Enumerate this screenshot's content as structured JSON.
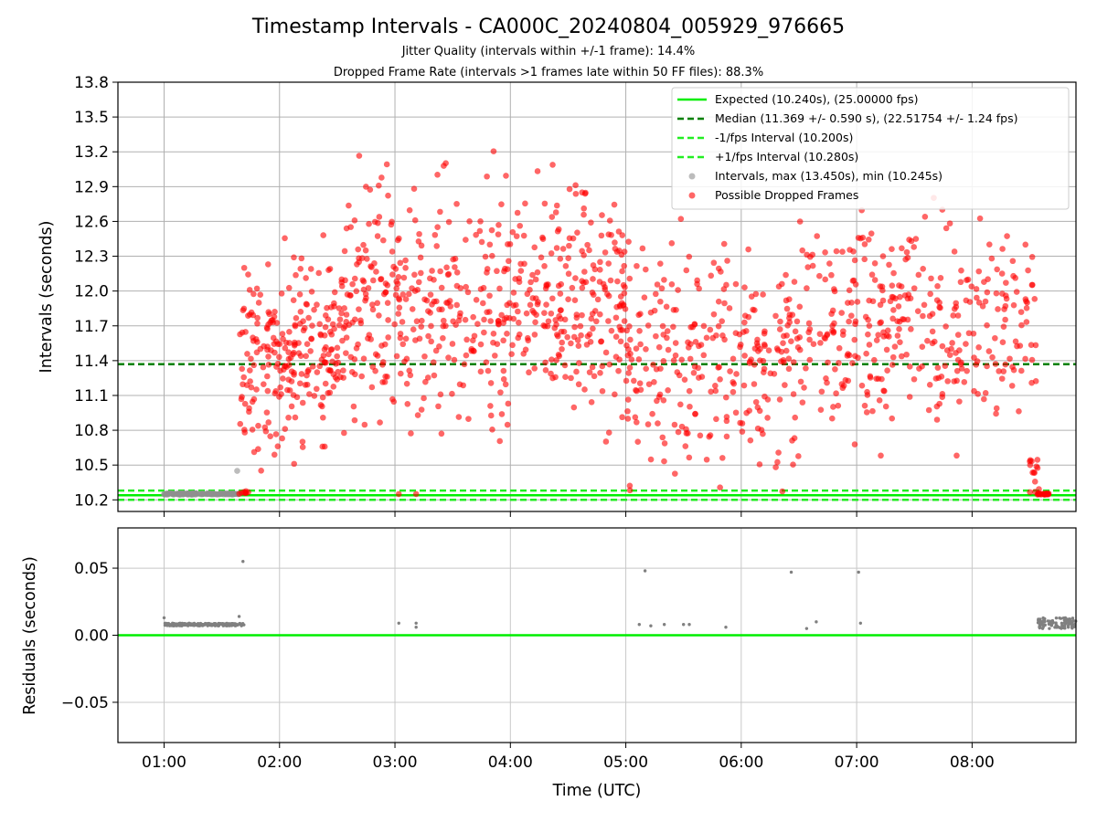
{
  "chart_data": {
    "type": "scatter",
    "title": "Timestamp Intervals - CA000C_20240804_005929_976665",
    "subtitles": [
      "Jitter Quality (intervals within +/-1 frame): 14.4%",
      "Dropped Frame Rate (intervals >1 frames late within 50 FF files): 88.3%"
    ],
    "xlabel": "Time (UTC)",
    "x_ticks": [
      "01:00",
      "02:00",
      "03:00",
      "04:00",
      "05:00",
      "06:00",
      "07:00",
      "08:00"
    ],
    "x_range": [
      "00:36",
      "08:54"
    ],
    "grid": true,
    "panels": [
      {
        "name": "intervals",
        "ylabel": "Intervals (seconds)",
        "ylim": [
          10.1,
          13.8
        ],
        "y_ticks": [
          "10.2",
          "10.5",
          "10.8",
          "11.1",
          "11.4",
          "11.7",
          "12.0",
          "12.3",
          "12.6",
          "12.9",
          "13.2",
          "13.5",
          "13.8"
        ],
        "legend_position": "upper right",
        "series": [
          {
            "name": "Expected (10.240s), (25.00000 fps)",
            "kind": "hline",
            "y": 10.24,
            "color": "#00ee00",
            "style": "solid"
          },
          {
            "name": "Median (11.369 +/- 0.590 s), (22.51754 +/- 1.24 fps)",
            "kind": "hline",
            "y": 11.369,
            "color": "#008000",
            "style": "dashed"
          },
          {
            "name": "-1/fps Interval (10.200s)",
            "kind": "hline",
            "y": 10.2,
            "color": "#22ee22",
            "style": "dashed"
          },
          {
            "name": "+1/fps Interval (10.280s)",
            "kind": "hline",
            "y": 10.28,
            "color": "#22ee22",
            "style": "dashed"
          },
          {
            "name": "Intervals, max (13.450s), min (10.245s)",
            "kind": "scatter",
            "color": "#909090",
            "points": [
              {
                "t": "01:00",
                "y": 10.25
              },
              {
                "t": "01:05",
                "y": 10.25
              },
              {
                "t": "01:10",
                "y": 10.25
              },
              {
                "t": "01:15",
                "y": 10.25
              },
              {
                "t": "01:20",
                "y": 10.25
              },
              {
                "t": "01:25",
                "y": 10.25
              },
              {
                "t": "01:30",
                "y": 10.25
              },
              {
                "t": "01:35",
                "y": 10.25
              },
              {
                "t": "01:38",
                "y": 10.45
              },
              {
                "t": "01:39",
                "y": 10.25
              }
            ]
          },
          {
            "name": "Possible Dropped Frames",
            "kind": "scatter",
            "color": "#ff0000",
            "n_points": 1450,
            "envelope": [
              {
                "from": "01:39",
                "to": "01:44",
                "y_min": 10.25,
                "y_max": 10.28,
                "n": 8
              },
              {
                "from": "01:39",
                "to": "02:30",
                "y_min": 10.4,
                "y_max": 12.5,
                "n": 230
              },
              {
                "from": "02:30",
                "to": "04:00",
                "y_min": 10.5,
                "y_max": 13.25,
                "n": 330
              },
              {
                "from": "04:00",
                "to": "05:00",
                "y_min": 10.65,
                "y_max": 13.2,
                "n": 230
              },
              {
                "from": "05:00",
                "to": "06:30",
                "y_min": 10.25,
                "y_max": 12.65,
                "n": 270
              },
              {
                "from": "06:30",
                "to": "08:34",
                "y_min": 10.5,
                "y_max": 12.9,
                "n": 340
              },
              {
                "from": "08:30",
                "to": "08:35",
                "y_min": 10.25,
                "y_max": 10.6,
                "n": 14
              },
              {
                "from": "08:34",
                "to": "08:40",
                "y_min": 10.245,
                "y_max": 10.255,
                "n": 28
              }
            ]
          }
        ]
      },
      {
        "name": "residuals",
        "ylabel": "Residuals (seconds)",
        "ylim": [
          -0.08,
          0.08
        ],
        "y_ticks": [
          "−0.05",
          "0.00",
          "0.05"
        ],
        "series": [
          {
            "name": "zero",
            "kind": "hline",
            "y": 0.0,
            "color": "#00ee00",
            "style": "solid"
          },
          {
            "name": "residuals",
            "kind": "scatter",
            "color": "#808080",
            "points": [
              {
                "t": "01:00",
                "y": 0.013
              },
              {
                "t": "01:39",
                "y": 0.014
              },
              {
                "t": "01:41",
                "y": 0.055
              },
              {
                "t": "03:02",
                "y": 0.009
              },
              {
                "t": "03:11",
                "y": 0.009
              },
              {
                "t": "03:11",
                "y": 0.006
              },
              {
                "t": "05:07",
                "y": 0.008
              },
              {
                "t": "05:10",
                "y": 0.048
              },
              {
                "t": "05:13",
                "y": 0.007
              },
              {
                "t": "05:20",
                "y": 0.008
              },
              {
                "t": "05:30",
                "y": 0.008
              },
              {
                "t": "05:33",
                "y": 0.008
              },
              {
                "t": "05:52",
                "y": 0.006
              },
              {
                "t": "06:26",
                "y": 0.047
              },
              {
                "t": "06:34",
                "y": 0.005
              },
              {
                "t": "06:39",
                "y": 0.01
              },
              {
                "t": "07:01",
                "y": 0.047
              },
              {
                "t": "07:02",
                "y": 0.009
              }
            ],
            "clusters": [
              {
                "from": "01:00",
                "to": "01:42",
                "y_min": 0.007,
                "y_max": 0.009
              },
              {
                "from": "08:34",
                "to": "08:54",
                "y_min": 0.005,
                "y_max": 0.013
              }
            ]
          }
        ]
      }
    ]
  }
}
